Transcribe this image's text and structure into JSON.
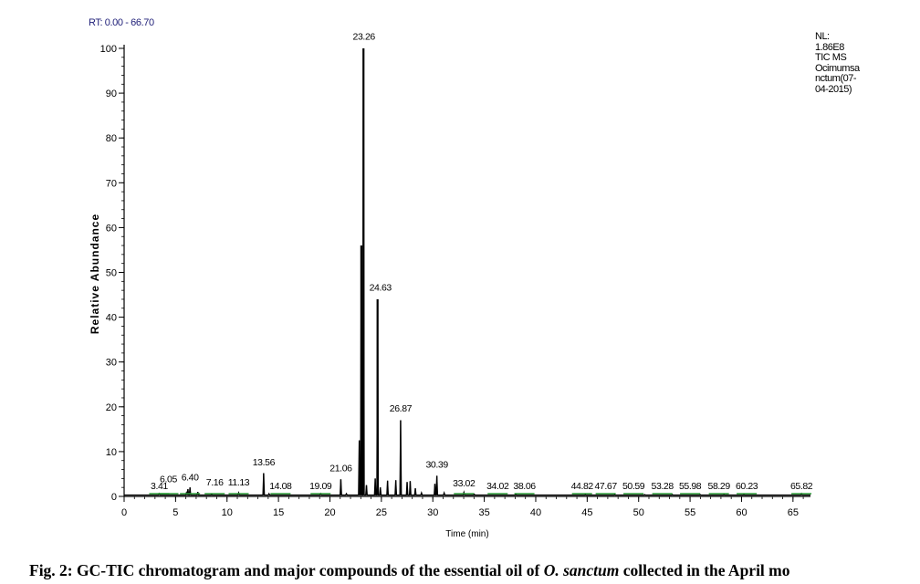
{
  "header": {
    "rt_range": "RT: 0.00 - 66.70"
  },
  "info_box": {
    "lines": [
      "NL:",
      "1.86E8",
      "TIC  MS",
      "Ocimumsa",
      "nctum(07-",
      "04-2015)"
    ]
  },
  "caption": {
    "prefix": "Fig. 2: GC-TIC chromatogram and major compounds of the essential oil of ",
    "species": "O. sanctum",
    "suffix": " collected in the April mo"
  },
  "chart_data": {
    "type": "line",
    "xlabel": "Time (min)",
    "ylabel": "Relative Abundance",
    "xlim": [
      0,
      66.7
    ],
    "ylim": [
      0,
      100
    ],
    "x_ticks": [
      0,
      5,
      10,
      15,
      20,
      25,
      30,
      35,
      40,
      45,
      50,
      55,
      60,
      65
    ],
    "y_ticks": [
      0,
      10,
      20,
      30,
      40,
      50,
      60,
      70,
      80,
      90,
      100
    ],
    "baseline": 0.3,
    "peaks": [
      {
        "x": 3.41,
        "y": 0.6
      },
      {
        "x": 6.05,
        "y": 0.8
      },
      {
        "x": 6.2,
        "y": 1.6
      },
      {
        "x": 6.4,
        "y": 2.0
      },
      {
        "x": 7.16,
        "y": 1.0
      },
      {
        "x": 8.5,
        "y": 0.5
      },
      {
        "x": 11.13,
        "y": 0.8
      },
      {
        "x": 13.56,
        "y": 5.2
      },
      {
        "x": 14.08,
        "y": 0.6
      },
      {
        "x": 19.09,
        "y": 0.6
      },
      {
        "x": 21.06,
        "y": 3.8
      },
      {
        "x": 21.6,
        "y": 0.6
      },
      {
        "x": 22.85,
        "y": 12.5
      },
      {
        "x": 23.05,
        "y": 56
      },
      {
        "x": 23.26,
        "y": 100
      },
      {
        "x": 23.55,
        "y": 2.5
      },
      {
        "x": 24.4,
        "y": 4.0
      },
      {
        "x": 24.63,
        "y": 44
      },
      {
        "x": 24.9,
        "y": 2.0
      },
      {
        "x": 25.6,
        "y": 3.5
      },
      {
        "x": 26.4,
        "y": 3.6
      },
      {
        "x": 26.87,
        "y": 17
      },
      {
        "x": 27.5,
        "y": 3.2
      },
      {
        "x": 27.8,
        "y": 3.4
      },
      {
        "x": 28.3,
        "y": 1.8
      },
      {
        "x": 28.9,
        "y": 0.8
      },
      {
        "x": 30.2,
        "y": 2.8
      },
      {
        "x": 30.39,
        "y": 4.6
      },
      {
        "x": 31.1,
        "y": 0.8
      },
      {
        "x": 33.02,
        "y": 0.9
      },
      {
        "x": 34.02,
        "y": 0.5
      },
      {
        "x": 38.06,
        "y": 0.5
      },
      {
        "x": 44.82,
        "y": 0.4
      },
      {
        "x": 47.67,
        "y": 0.4
      },
      {
        "x": 50.59,
        "y": 0.4
      },
      {
        "x": 53.28,
        "y": 0.4
      },
      {
        "x": 55.98,
        "y": 0.4
      },
      {
        "x": 58.29,
        "y": 0.4
      },
      {
        "x": 60.23,
        "y": 0.4
      },
      {
        "x": 65.82,
        "y": 0.6
      }
    ],
    "peak_labels": [
      {
        "text": "3.41",
        "x": 3.41,
        "y": 1.2
      },
      {
        "text": "6.05",
        "x": 4.3,
        "y": 2.7
      },
      {
        "text": "6.40",
        "x": 6.4,
        "y": 3.2
      },
      {
        "text": "7.16",
        "x": 8.8,
        "y": 2.0
      },
      {
        "text": "11.13",
        "x": 11.13,
        "y": 2.0
      },
      {
        "text": "13.56",
        "x": 13.56,
        "y": 6.5
      },
      {
        "text": "14.08",
        "x": 15.2,
        "y": 1.2
      },
      {
        "text": "19.09",
        "x": 19.09,
        "y": 1.2
      },
      {
        "text": "21.06",
        "x": 21.06,
        "y": 5.2
      },
      {
        "text": "23.26",
        "x": 23.3,
        "y": 101.5
      },
      {
        "text": "24.63",
        "x": 24.9,
        "y": 45.5
      },
      {
        "text": "26.87",
        "x": 26.87,
        "y": 18.5
      },
      {
        "text": "30.39",
        "x": 30.39,
        "y": 6.0
      },
      {
        "text": "33.02",
        "x": 33.02,
        "y": 1.8
      },
      {
        "text": "34.02",
        "x": 36.3,
        "y": 1.2
      },
      {
        "text": "38.06",
        "x": 38.9,
        "y": 1.2
      },
      {
        "text": "44.82",
        "x": 44.5,
        "y": 1.2
      },
      {
        "text": "47.67",
        "x": 46.8,
        "y": 1.2
      },
      {
        "text": "50.59",
        "x": 49.5,
        "y": 1.2
      },
      {
        "text": "53.28",
        "x": 52.3,
        "y": 1.2
      },
      {
        "text": "55.98",
        "x": 55.0,
        "y": 1.2
      },
      {
        "text": "58.29",
        "x": 57.8,
        "y": 1.2
      },
      {
        "text": "60.23",
        "x": 60.5,
        "y": 1.2
      },
      {
        "text": "65.82",
        "x": 65.82,
        "y": 1.2
      }
    ],
    "colors": {
      "trace": "#000000",
      "axis": "#000000",
      "marker": "#2e9b3a",
      "rt_text": "#22227a"
    }
  }
}
